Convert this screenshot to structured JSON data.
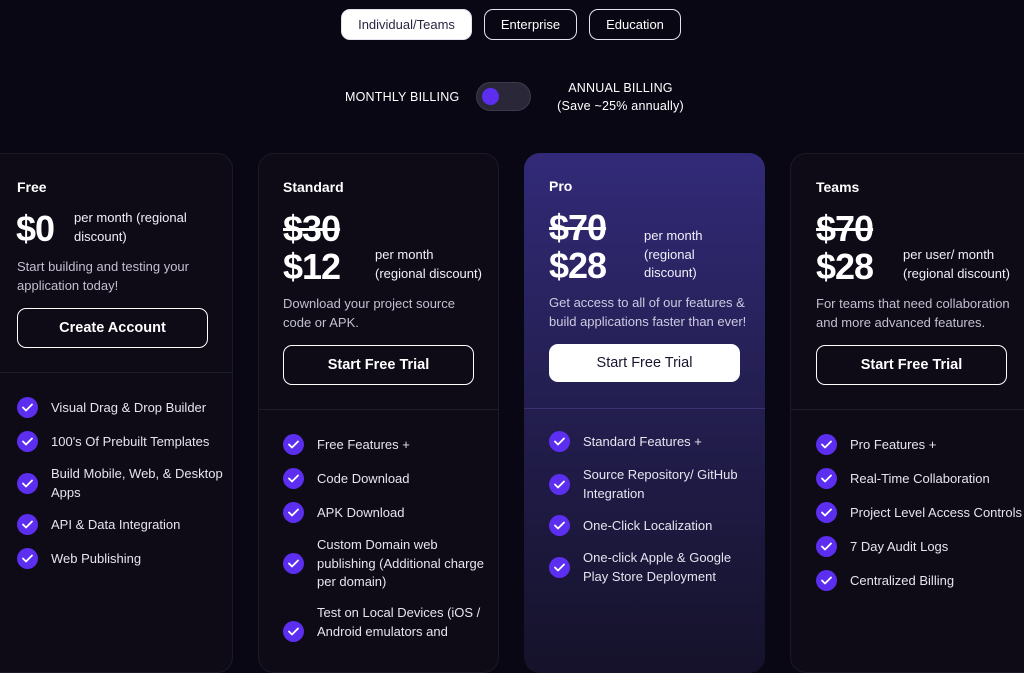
{
  "tabs": [
    {
      "label": "Individual/Teams",
      "active": true
    },
    {
      "label": "Enterprise",
      "active": false
    },
    {
      "label": "Education",
      "active": false
    }
  ],
  "billing": {
    "monthly_label": "MONTHLY BILLING",
    "annual_label": "ANNUAL BILLING",
    "annual_note": "(Save ~25% annually)"
  },
  "plans": {
    "free": {
      "name": "Free",
      "price": "$0",
      "per": [
        "per month (regional",
        "discount)"
      ],
      "desc": [
        "Start building and testing your",
        "application today!"
      ],
      "cta": "Create Account",
      "features": [
        [
          "Visual Drag & Drop Builder"
        ],
        [
          "100's Of Prebuilt Templates"
        ],
        [
          "Build Mobile, Web, & Desktop",
          "Apps"
        ],
        [
          "API & Data Integration"
        ],
        [
          "Web Publishing"
        ]
      ]
    },
    "standard": {
      "name": "Standard",
      "old_price": "$30",
      "price": "$12",
      "per": [
        "per month",
        "(regional discount)"
      ],
      "desc": [
        "Download your project source",
        "code or APK."
      ],
      "cta": "Start Free Trial",
      "features": [
        [
          "Free Features +"
        ],
        [
          "Code Download"
        ],
        [
          "APK Download"
        ],
        [
          "Custom Domain web",
          "publishing (Additional charge",
          "per domain)"
        ],
        [
          "Test on Local Devices (iOS /",
          "Android emulators and"
        ]
      ]
    },
    "pro": {
      "name": "Pro",
      "old_price": "$70",
      "price": "$28",
      "per": [
        "per month",
        "(regional",
        "discount)"
      ],
      "desc": [
        "Get access to all of our features &",
        "build applications faster than ever!"
      ],
      "cta": "Start Free Trial",
      "features": [
        [
          "Standard Features +"
        ],
        [
          "Source Repository/ GitHub",
          "Integration"
        ],
        [
          "One-Click Localization"
        ],
        [
          "One-click Apple & Google",
          "Play Store Deployment"
        ]
      ]
    },
    "teams": {
      "name": "Teams",
      "old_price": "$70",
      "price": "$28",
      "per": [
        "per user/ month",
        "(regional discount)"
      ],
      "desc": [
        "For teams that need collaboration",
        "and more advanced features."
      ],
      "cta": "Start Free Trial",
      "features": [
        [
          "Pro Features +"
        ],
        [
          "Real-Time Collaboration"
        ],
        [
          "Project Level Access Controls"
        ],
        [
          "7 Day Audit Logs"
        ],
        [
          "Centralized Billing"
        ]
      ]
    }
  },
  "colors": {
    "accent": "#5b2ef0",
    "background": "#0a0714",
    "pro_card": "#322a78"
  },
  "icons": {
    "feature": "check-circle-icon"
  }
}
